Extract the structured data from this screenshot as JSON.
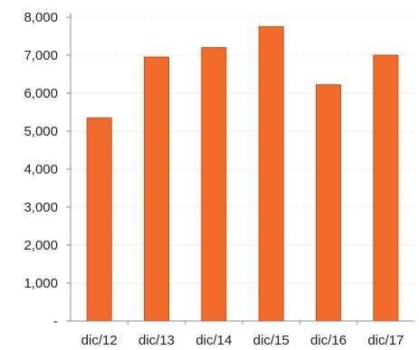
{
  "chart_data": {
    "type": "bar",
    "categories": [
      "dic/12",
      "dic/13",
      "dic/14",
      "dic/15",
      "dic/16",
      "dic/17"
    ],
    "values": [
      5350,
      6950,
      7200,
      7750,
      6220,
      7000
    ],
    "y_tick_labels": [
      "-",
      "1,000",
      "2,000",
      "3,000",
      "4,000",
      "5,000",
      "6,000",
      "7,000",
      "8,000"
    ],
    "y_tick_values": [
      0,
      1000,
      2000,
      3000,
      4000,
      5000,
      6000,
      7000,
      8000
    ],
    "ylim": [
      0,
      8000
    ],
    "grid": true,
    "legend": "none",
    "title": "",
    "xlabel": "",
    "ylabel": "",
    "colors": {
      "bar_fill": "#F06A2B",
      "bar_edge": "#C4521E",
      "grid": "#d9d9d9",
      "axis": "#8c8c8c"
    }
  }
}
